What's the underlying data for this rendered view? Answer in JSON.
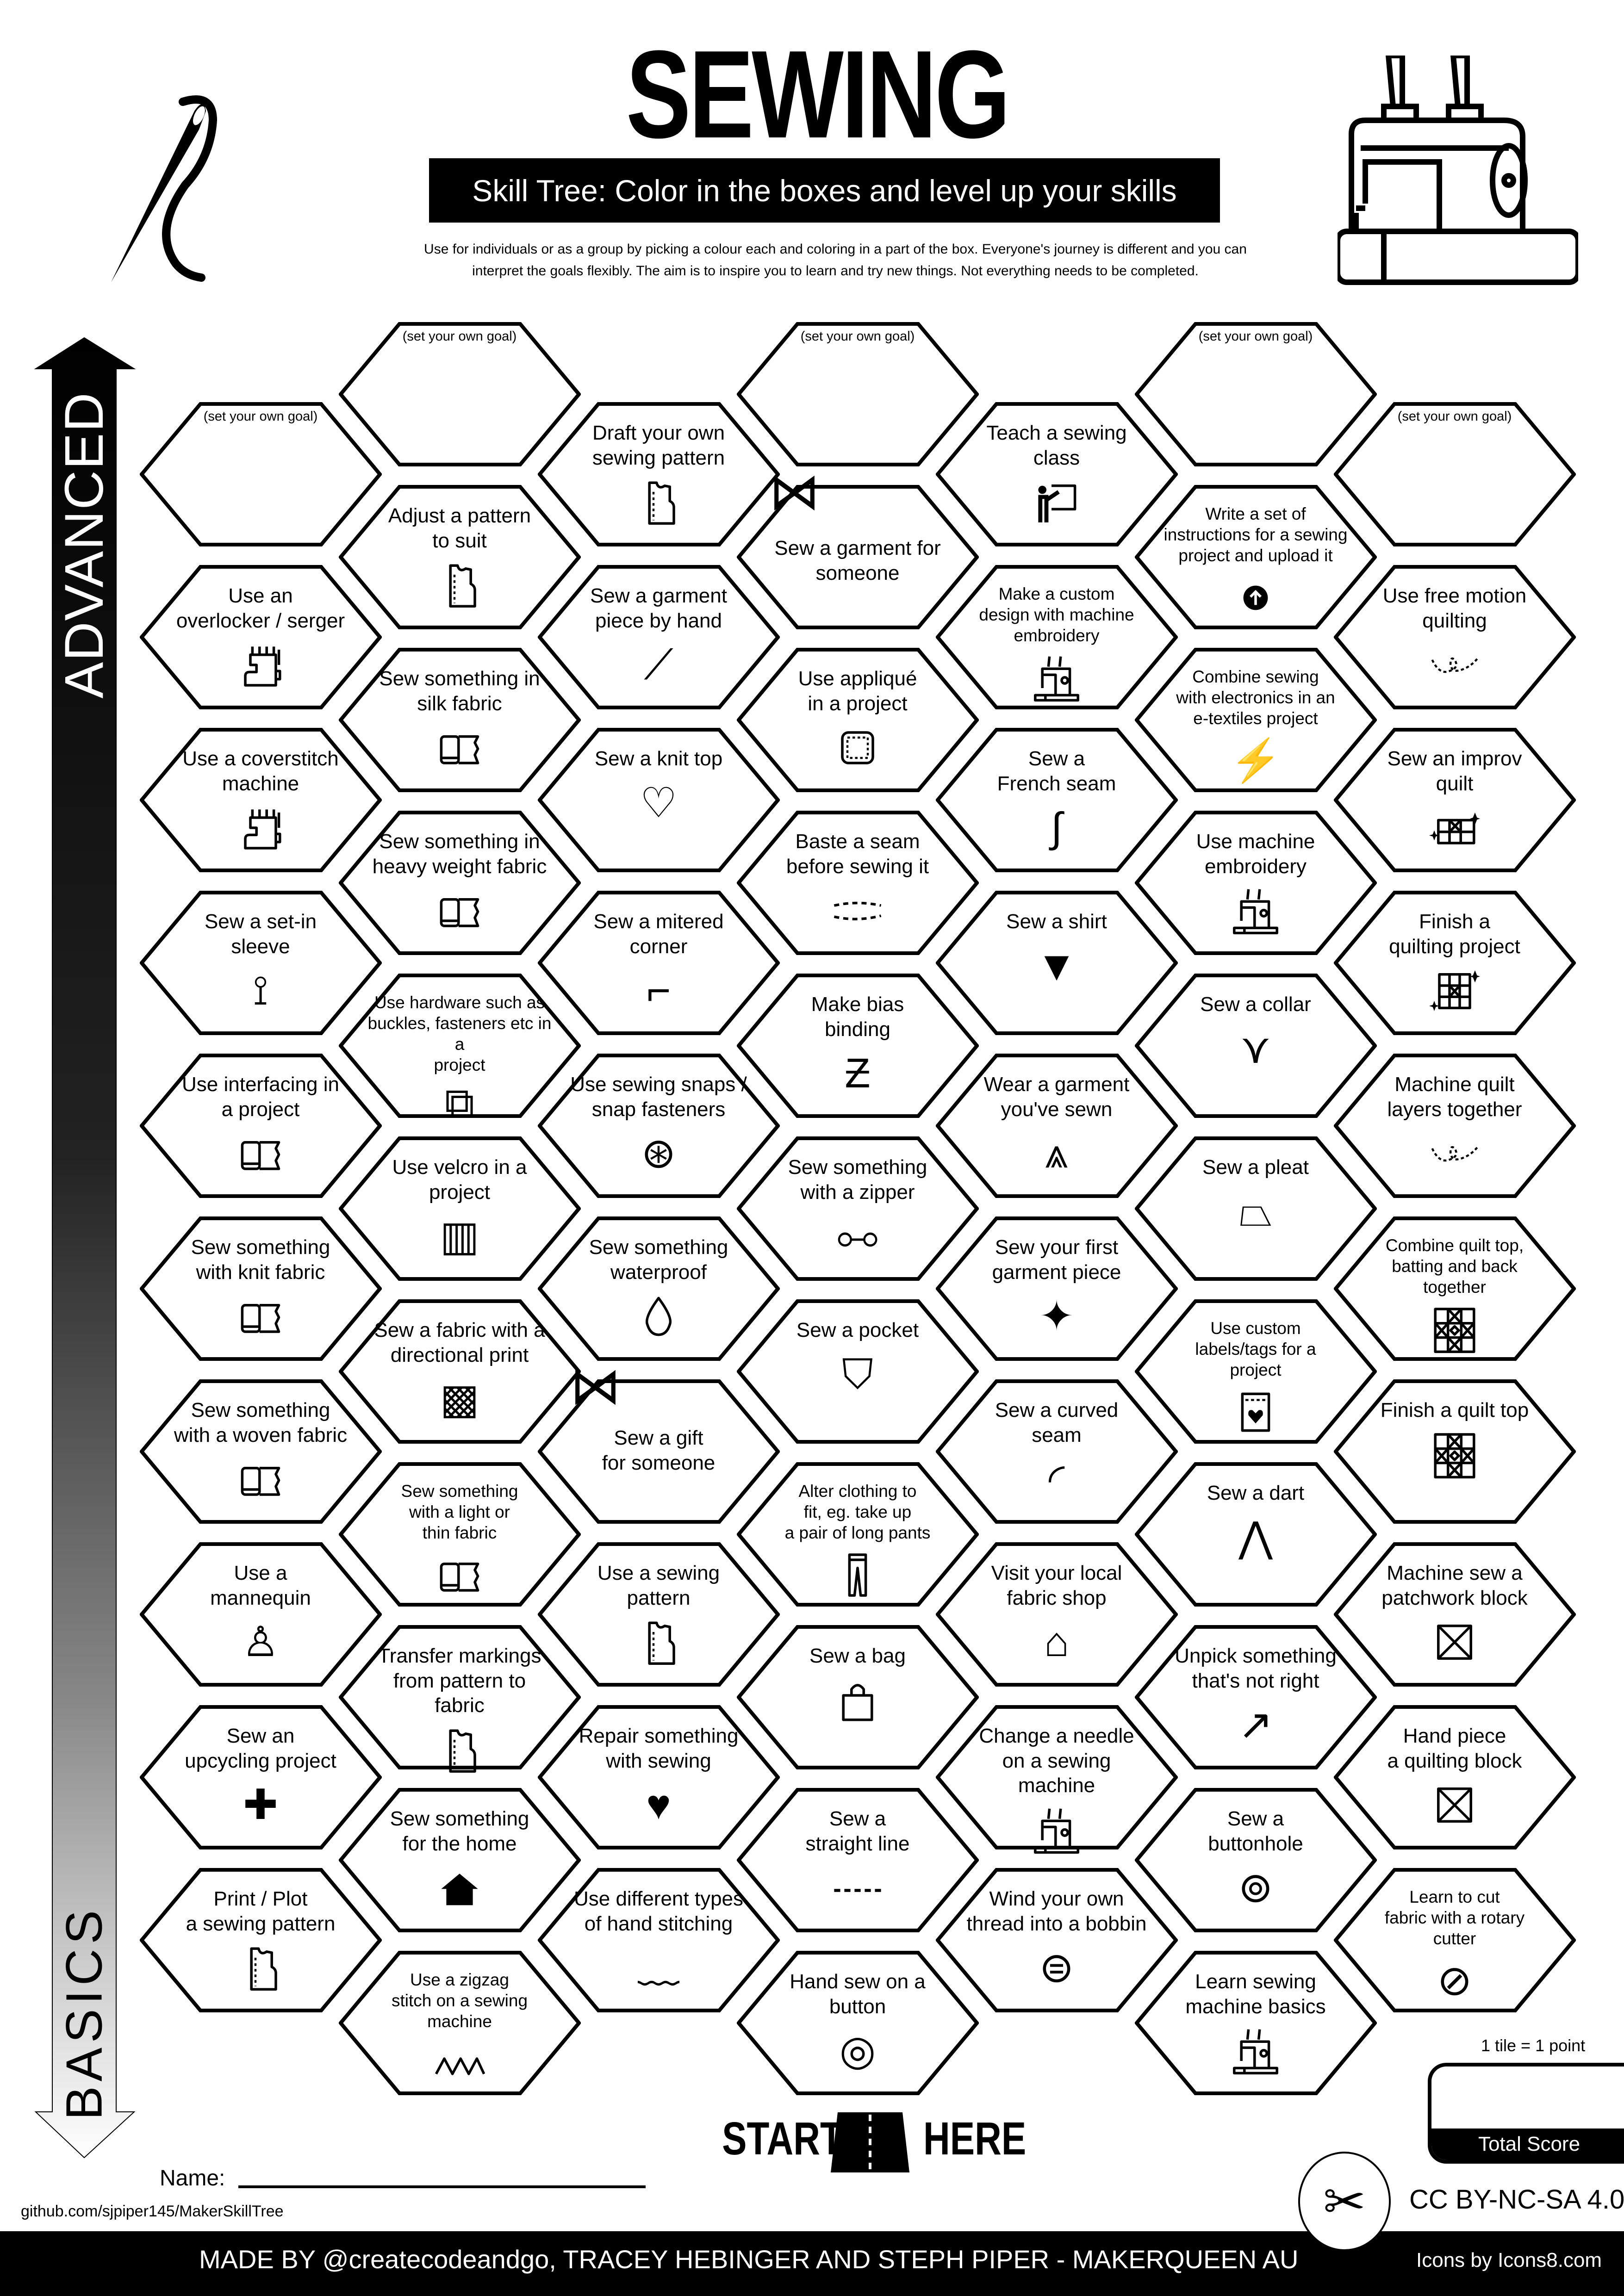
{
  "header": {
    "title": "SEWING",
    "subtitle": "Skill Tree:  Color in the boxes and level up your skills",
    "description_line1": "Use for individuals or as a group by picking a colour each and coloring in a part of the box.  Everyone's journey is different and you can",
    "description_line2": "interpret the goals flexibly.  The aim is to inspire you to learn and try new things. Not everything needs to be completed."
  },
  "axis": {
    "top_label": "ADVANCED",
    "bottom_label": "BASICS"
  },
  "columns": [
    [
      {
        "text": "(set your own goal)",
        "icon": "",
        "goal": true
      },
      {
        "text": "Use an\noverlocker / serger",
        "icon": "overlocker"
      },
      {
        "text": "Use a coverstitch\nmachine",
        "icon": "overlocker"
      },
      {
        "text": "Sew a set-in\nsleeve",
        "icon": "sleeve"
      },
      {
        "text": "Use interfacing in\na project",
        "icon": "fabric-roll"
      },
      {
        "text": "Sew something\nwith knit fabric",
        "icon": "fabric-roll"
      },
      {
        "text": "Sew something\nwith a woven fabric",
        "icon": "fabric-roll"
      },
      {
        "text": "Use a\nmannequin",
        "icon": "mannequin"
      },
      {
        "text": "Sew an\nupcycling project",
        "icon": "bandage"
      },
      {
        "text": "Print / Plot\na sewing pattern",
        "icon": "pattern"
      }
    ],
    [
      {
        "text": "(set your own goal)",
        "icon": "",
        "goal": true
      },
      {
        "text": "Adjust a pattern\nto suit",
        "icon": "pattern"
      },
      {
        "text": "Sew something in\nsilk fabric",
        "icon": "fabric-roll"
      },
      {
        "text": "Sew something in\nheavy weight fabric",
        "icon": "fabric-roll"
      },
      {
        "text": "Use hardware such as\nbuckles, fasteners etc in a\nproject",
        "icon": "buckle"
      },
      {
        "text": "Use velcro in a\nproject",
        "icon": "velcro"
      },
      {
        "text": "Sew a fabric with a\ndirectional print",
        "icon": "scale-pattern"
      },
      {
        "text": "Sew something\nwith a light or\nthin fabric",
        "icon": "fabric-roll"
      },
      {
        "text": "Transfer markings\nfrom pattern to fabric",
        "icon": "pattern"
      },
      {
        "text": "Sew something\nfor the home",
        "icon": "home"
      },
      {
        "text": "Use a zigzag\nstitch on a sewing\nmachine",
        "icon": "zigzag"
      }
    ],
    [
      {
        "text": "Draft your own\nsewing pattern",
        "icon": "pattern"
      },
      {
        "text": "Sew a garment\npiece by hand",
        "icon": "needle"
      },
      {
        "text": "Sew a knit top",
        "icon": "tshirt-heart"
      },
      {
        "text": "Sew a mitered\ncorner",
        "icon": "mitered-corner"
      },
      {
        "text": "Use sewing snaps /\nsnap fasteners",
        "icon": "snap"
      },
      {
        "text": "Sew something\nwaterproof",
        "icon": "water-drop"
      },
      {
        "text": "Sew a gift\nfor someone",
        "icon": "bow"
      },
      {
        "text": "Use a sewing\npattern",
        "icon": "pattern"
      },
      {
        "text": "Repair something\nwith sewing",
        "icon": "broken-heart"
      },
      {
        "text": "Use different types\nof hand stitching",
        "icon": "hand-stitching"
      }
    ],
    [
      {
        "text": "(set your own goal)",
        "icon": "",
        "goal": true
      },
      {
        "text": "Sew a garment for\nsomeone",
        "icon": "bow"
      },
      {
        "text": "Use appliqué\nin a project",
        "icon": "applique"
      },
      {
        "text": "Baste a seam\nbefore sewing it",
        "icon": "baste-stitch"
      },
      {
        "text": "Make bias\nbinding",
        "icon": "bias-binding"
      },
      {
        "text": "Sew something\nwith a zipper",
        "icon": "zipper"
      },
      {
        "text": "Sew a pocket",
        "icon": "pocket"
      },
      {
        "text": "Alter clothing to\nfit, eg. take up\na pair of long pants",
        "icon": "pants"
      },
      {
        "text": "Sew a bag",
        "icon": "shopping-bag"
      },
      {
        "text": "Sew a\nstraight line",
        "icon": "straight-line"
      },
      {
        "text": "Hand sew on a\nbutton",
        "icon": "button"
      }
    ],
    [
      {
        "text": "Teach a sewing\nclass",
        "icon": "teacher"
      },
      {
        "text": "Make a custom\ndesign with machine\nembroidery",
        "icon": "sewing-machine"
      },
      {
        "text": "Sew a\nFrench seam",
        "icon": "french-seam"
      },
      {
        "text": "Sew a shirt",
        "icon": "shirt"
      },
      {
        "text": "Wear a garment\nyou've sewn",
        "icon": "jacket"
      },
      {
        "text": "Sew your first\ngarment piece",
        "icon": "jacket-sparkle"
      },
      {
        "text": "Sew a curved\nseam",
        "icon": "curved-seam"
      },
      {
        "text": "Visit your local\nfabric shop",
        "icon": "shop"
      },
      {
        "text": "Change a needle\non a sewing machine",
        "icon": "sewing-machine"
      },
      {
        "text": "Wind your own\nthread into a bobbin",
        "icon": "thread-spool"
      }
    ],
    [
      {
        "text": "(set your own goal)",
        "icon": "",
        "goal": true
      },
      {
        "text": "Write a set of\ninstructions for a sewing\nproject and upload it",
        "icon": "upload"
      },
      {
        "text": "Combine sewing\nwith electronics in an\ne-textiles project",
        "icon": "led"
      },
      {
        "text": "Use machine\nembroidery",
        "icon": "sewing-machine"
      },
      {
        "text": "Sew a collar",
        "icon": "collar"
      },
      {
        "text": "Sew a pleat",
        "icon": "skirt"
      },
      {
        "text": "Use custom\nlabels/tags for a\nproject",
        "icon": "label"
      },
      {
        "text": "Sew a dart",
        "icon": "dart"
      },
      {
        "text": "Unpick something\nthat's not right",
        "icon": "seam-ripper"
      },
      {
        "text": "Sew a\nbuttonhole",
        "icon": "buttonhole"
      },
      {
        "text": "Learn sewing\nmachine basics",
        "icon": "sewing-machine"
      }
    ],
    [
      {
        "text": "(set your own goal)",
        "icon": "",
        "goal": true
      },
      {
        "text": "Use free motion\nquilting",
        "icon": "free-motion"
      },
      {
        "text": "Sew an improv\nquilt",
        "icon": "improv-quilt"
      },
      {
        "text": "Finish a\nquilting project",
        "icon": "quilt-sparkle"
      },
      {
        "text": "Machine quilt\nlayers together",
        "icon": "free-motion"
      },
      {
        "text": "Combine quilt top,\nbatting and back\ntogether",
        "icon": "quilt"
      },
      {
        "text": "Finish a quilt top",
        "icon": "quilt"
      },
      {
        "text": "Machine sew a\npatchwork block",
        "icon": "patchwork-block"
      },
      {
        "text": "Hand piece\na quilting block",
        "icon": "patchwork-block"
      },
      {
        "text": "Learn to cut\nfabric with a rotary\ncutter",
        "icon": "rotary-cutter"
      }
    ]
  ],
  "start": {
    "start_label": "START",
    "here_label": "HERE"
  },
  "name_label": "Name:",
  "github": "github.com/sjpiper145/MakerSkillTree",
  "footer": {
    "made_by": "MADE BY @createcodeandgo, TRACEY HEBINGER  AND STEPH PIPER  -  MAKERQUEEN AU",
    "license": "CC BY-NC-SA 4.0",
    "icons_credit": "Icons by Icons8.com"
  },
  "score": {
    "rule": "1 tile = 1 point",
    "label": "Total Score"
  }
}
